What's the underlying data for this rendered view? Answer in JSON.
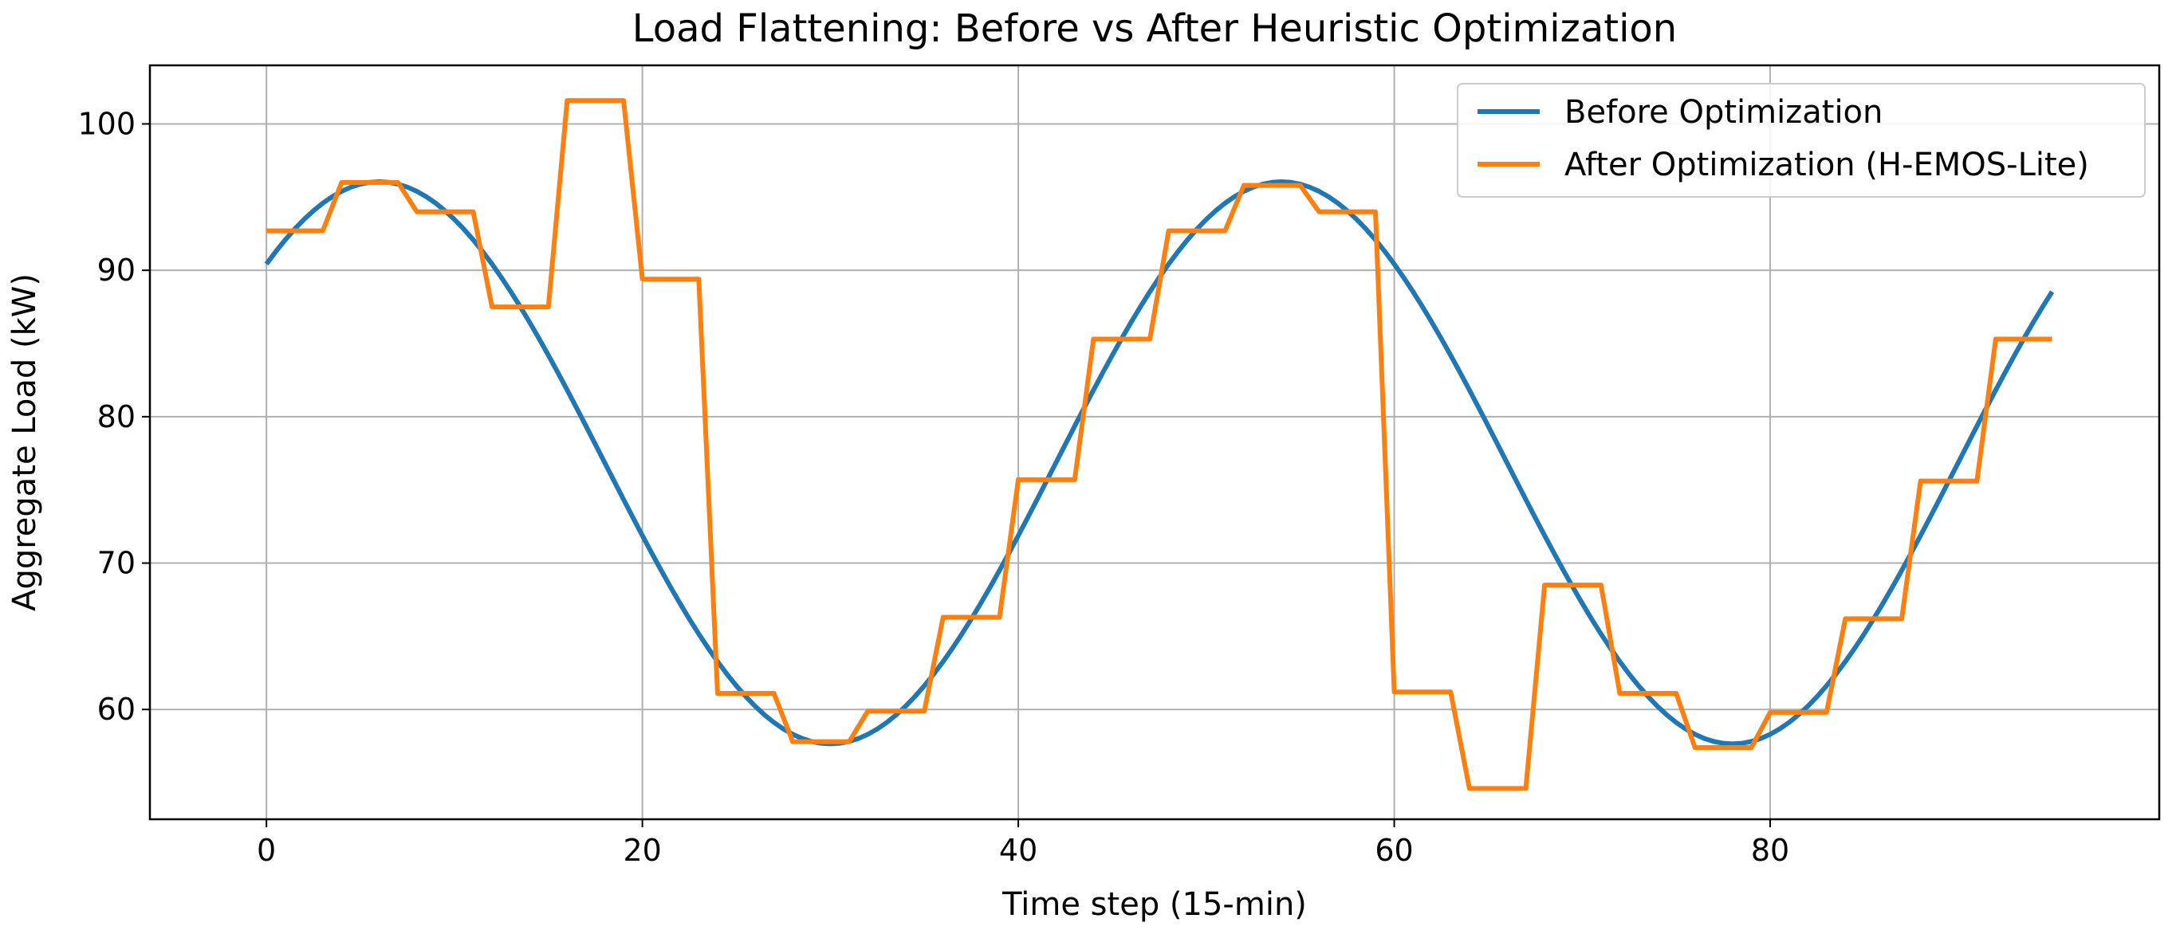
{
  "chart_data": {
    "type": "line",
    "title": "Load Flattening: Before vs After Heuristic Optimization",
    "xlabel": "Time step (15-min)",
    "ylabel": "Aggregate Load (kW)",
    "xlim": [
      -6.2,
      100.7
    ],
    "ylim": [
      52.5,
      104
    ],
    "xticks": [
      0,
      20,
      40,
      60,
      80
    ],
    "yticks": [
      60,
      70,
      80,
      90,
      100
    ],
    "grid": true,
    "legend_position": "top-right",
    "series": [
      {
        "name": "Before Optimization",
        "color": "#1f77b4",
        "kind": "sine",
        "x_start": 0,
        "x_end": 95,
        "step": 0.5,
        "mean": 76.85,
        "amplitude": 19.2,
        "period": 48,
        "phase_peak": 6
      },
      {
        "name": "After Optimization (H-EMOS-Lite)",
        "color": "#ff7f0e",
        "kind": "steps",
        "segments": [
          [
            0,
            3,
            92.7
          ],
          [
            4,
            7,
            96.0
          ],
          [
            8,
            11,
            94.0
          ],
          [
            12,
            15,
            87.5
          ],
          [
            16,
            19,
            101.6
          ],
          [
            20,
            23,
            89.4
          ],
          [
            24,
            27,
            61.1
          ],
          [
            28,
            31,
            57.8
          ],
          [
            32,
            35,
            59.9
          ],
          [
            36,
            39,
            66.3
          ],
          [
            40,
            43,
            75.7
          ],
          [
            44,
            47,
            85.3
          ],
          [
            48,
            51,
            92.7
          ],
          [
            52,
            55,
            95.8
          ],
          [
            56,
            59,
            94.0
          ],
          [
            60,
            63,
            61.2
          ],
          [
            64,
            67,
            54.6
          ],
          [
            68,
            71,
            68.5
          ],
          [
            72,
            75,
            61.1
          ],
          [
            76,
            79,
            57.4
          ],
          [
            80,
            83,
            59.8
          ],
          [
            84,
            87,
            66.2
          ],
          [
            88,
            91,
            75.6
          ],
          [
            92,
            95,
            85.3
          ]
        ]
      }
    ]
  }
}
